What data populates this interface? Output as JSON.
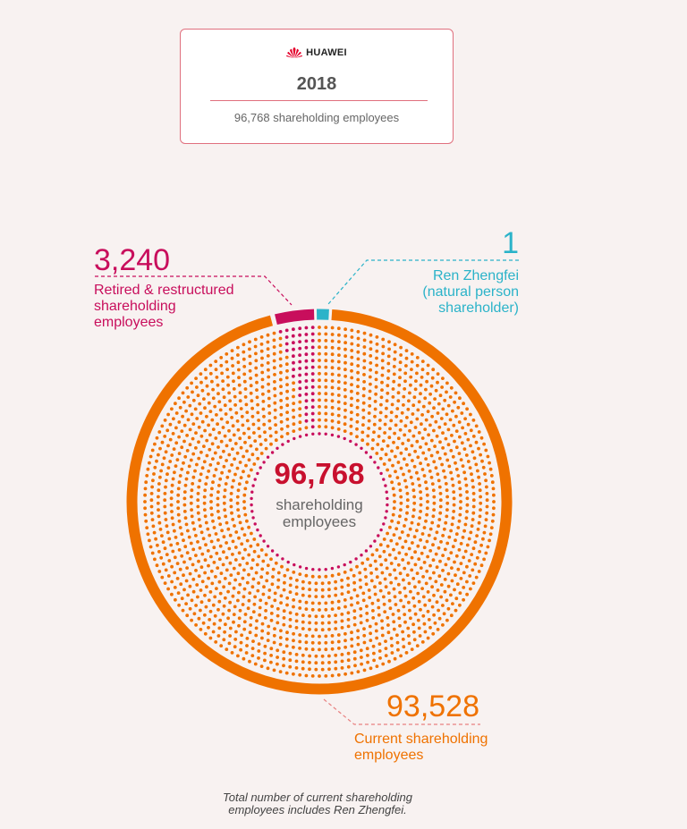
{
  "header_card": {
    "brand": "HUAWEI",
    "year": "2018",
    "subtitle": "96,768 shareholding employees"
  },
  "center": {
    "total": "96,768",
    "label_line1": "shareholding",
    "label_line2": "employees"
  },
  "segments": {
    "retired": {
      "value": "3,240",
      "line1": "Retired & restructured",
      "line2": "shareholding",
      "line3": "employees",
      "color": "#c80e5c"
    },
    "ren": {
      "value": "1",
      "line1": "Ren Zhengfei",
      "line2": "(natural person",
      "line3": "shareholder)",
      "color": "#2bb3c9"
    },
    "current": {
      "value": "93,528",
      "line1": "Current shareholding",
      "line2": "employees",
      "color": "#ef7200"
    }
  },
  "footnote": {
    "line1": "Total number of current shareholding",
    "line2": "employees includes Ren Zhengfei."
  },
  "colors": {
    "background": "#f8f2f1",
    "card_border": "#e0707e",
    "center_number": "#c8102e"
  },
  "chart_data": {
    "type": "pie",
    "title": "2018 — 96,768 shareholding employees",
    "categories": [
      "Retired & restructured shareholding employees",
      "Ren Zhengfei (natural person shareholder)",
      "Current shareholding employees"
    ],
    "values": [
      3240,
      1,
      93528
    ],
    "total": 96768,
    "colors": [
      "#c80e5c",
      "#2bb3c9",
      "#ef7200"
    ],
    "annotations": [
      "Total number of current shareholding employees includes Ren Zhengfei."
    ],
    "legend": "callout labels"
  }
}
